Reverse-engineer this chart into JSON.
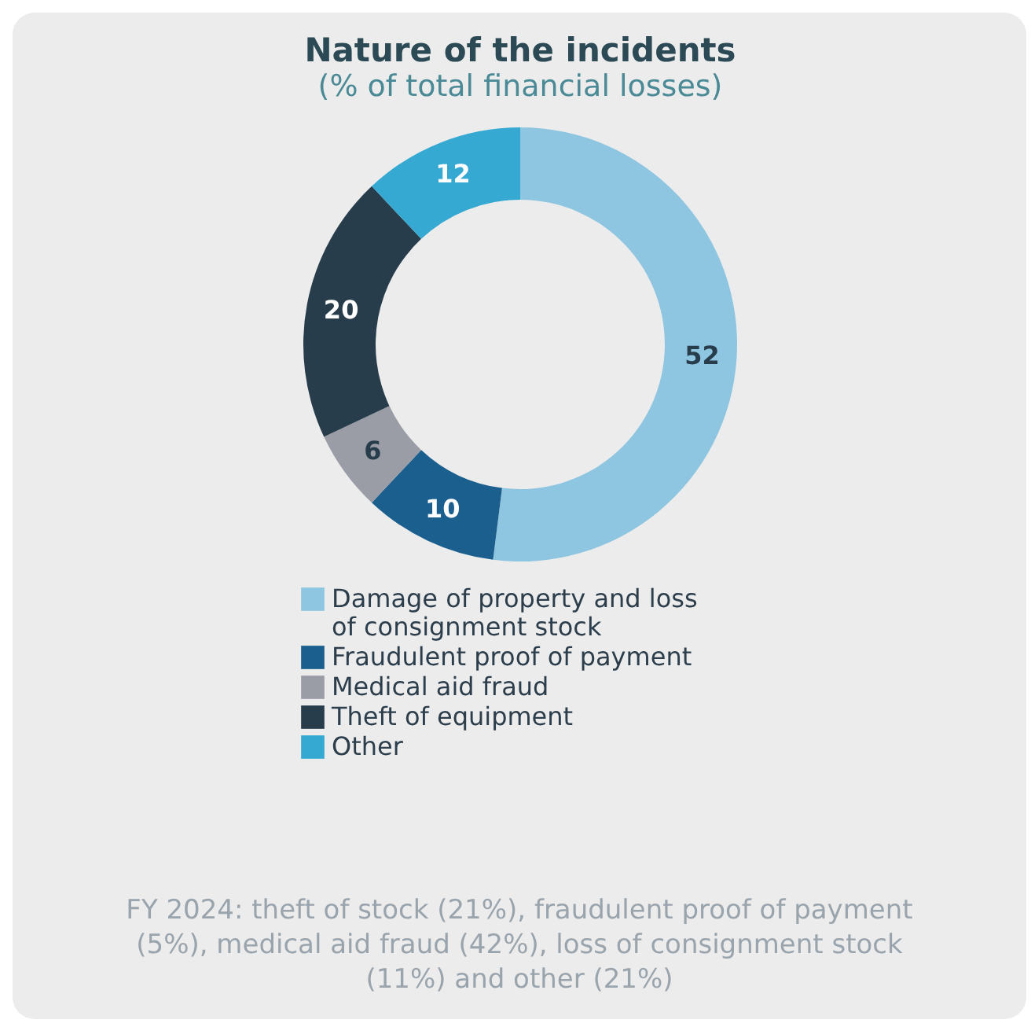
{
  "chart_data": {
    "type": "donut",
    "title": "Nature of the incidents",
    "subtitle": "(% of total financial losses)",
    "categories": [
      "Damage of property and loss of consignment stock",
      "Fraudulent proof of payment",
      "Medical aid fraud",
      "Theft of equipment",
      "Other"
    ],
    "values": [
      52,
      10,
      6,
      20,
      12
    ],
    "colors": [
      "#8ec5e0",
      "#1a5f8e",
      "#9a9ca6",
      "#283d4b",
      "#36a9d3"
    ],
    "data_labels": true,
    "legend": "bottom",
    "annotations": [
      "FY 2024: theft of stock (21%), fraudulent proof of payment (5%), medical aid fraud (42%), loss of consignment stock (11%) and other (21%)"
    ]
  }
}
